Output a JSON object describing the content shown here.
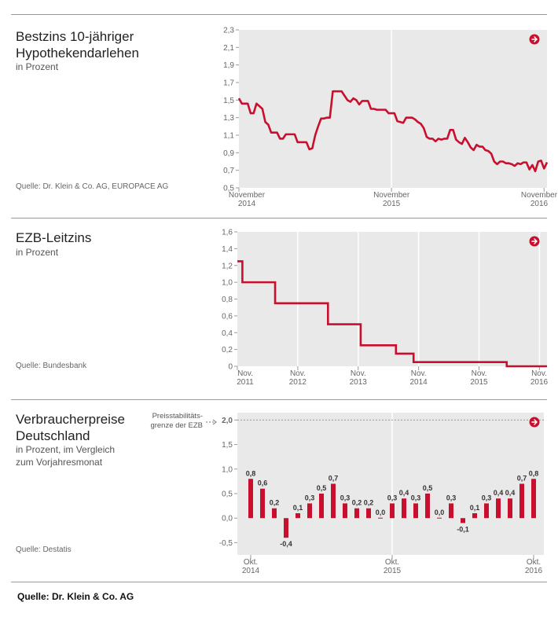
{
  "colors": {
    "series": "#c8102e",
    "plot_bg": "#e9e9e9",
    "grid": "#ffffff"
  },
  "footer": "Quelle: Dr. Klein & Co. AG",
  "panels": [
    {
      "title_line1": "Bestzins 10-jähriger",
      "title_line2": "Hypothekendarlehen",
      "subtitle_line1": "in Prozent",
      "source": "Quelle: Dr. Klein & Co. AG, EUROPACE AG",
      "icon": "arrow-right-circle-icon"
    },
    {
      "title_line1": "EZB-Leitzins",
      "title_line2": "",
      "subtitle_line1": "in Prozent",
      "source": "Quelle: Bundesbank",
      "icon": "arrow-right-circle-icon"
    },
    {
      "title_line1": "Verbraucherpreise",
      "title_line2": "Deutschland",
      "subtitle_line1": "in Prozent, im Vergleich",
      "subtitle_line2": "zum Vorjahresmonat",
      "source": "Quelle: Destatis",
      "note": "Preisstabilitäts-grenze der EZB",
      "icon": "arrow-right-circle-icon"
    }
  ],
  "chart_data": [
    {
      "type": "line",
      "title": "Bestzins 10-jähriger Hypothekendarlehen",
      "ylabel": "in Prozent",
      "ylim": [
        0.5,
        2.3
      ],
      "yticks": [
        "0,5",
        "0,7",
        "0,9",
        "1,1",
        "1,3",
        "1,5",
        "1,7",
        "1,9",
        "2,1",
        "2,3"
      ],
      "xticks": [
        {
          "pos": 0,
          "line1": "November",
          "line2": "2014"
        },
        {
          "pos": 52,
          "line1": "November",
          "line2": "2015"
        },
        {
          "pos": 104,
          "line1": "November",
          "line2": "2016"
        }
      ],
      "xlim": [
        0,
        105
      ],
      "grid": "vertical lines at year ticks",
      "series": [
        {
          "name": "Bestzins",
          "values": [
            1.52,
            1.46,
            1.46,
            1.46,
            1.35,
            1.35,
            1.46,
            1.43,
            1.4,
            1.25,
            1.22,
            1.13,
            1.13,
            1.13,
            1.06,
            1.06,
            1.11,
            1.11,
            1.11,
            1.11,
            1.02,
            1.02,
            1.02,
            1.02,
            0.94,
            0.95,
            1.1,
            1.2,
            1.29,
            1.29,
            1.3,
            1.3,
            1.6,
            1.6,
            1.6,
            1.6,
            1.55,
            1.5,
            1.48,
            1.52,
            1.5,
            1.45,
            1.49,
            1.49,
            1.49,
            1.4,
            1.4,
            1.39,
            1.39,
            1.39,
            1.39,
            1.35,
            1.35,
            1.35,
            1.26,
            1.25,
            1.24,
            1.3,
            1.3,
            1.3,
            1.28,
            1.25,
            1.23,
            1.18,
            1.08,
            1.06,
            1.06,
            1.03,
            1.06,
            1.05,
            1.06,
            1.06,
            1.16,
            1.16,
            1.05,
            1.02,
            1.0,
            1.07,
            1.02,
            0.96,
            0.93,
            0.99,
            0.97,
            0.97,
            0.93,
            0.92,
            0.89,
            0.8,
            0.77,
            0.8,
            0.8,
            0.78,
            0.78,
            0.77,
            0.75,
            0.78,
            0.77,
            0.79,
            0.79,
            0.71,
            0.76,
            0.69,
            0.8,
            0.81,
            0.72,
            0.79
          ]
        }
      ]
    },
    {
      "type": "line",
      "title": "EZB-Leitzins",
      "ylabel": "in Prozent",
      "ylim": [
        0,
        1.6
      ],
      "yticks": [
        "0",
        "0,2",
        "0,4",
        "0,6",
        "0,8",
        "1,0",
        "1,2",
        "1,4",
        "1,6"
      ],
      "xticks": [
        {
          "pos": 0,
          "line1": "Nov.",
          "line2": "2011"
        },
        {
          "pos": 12,
          "line1": "Nov.",
          "line2": "2012"
        },
        {
          "pos": 24,
          "line1": "Nov.",
          "line2": "2013"
        },
        {
          "pos": 36,
          "line1": "Nov.",
          "line2": "2014"
        },
        {
          "pos": 48,
          "line1": "Nov.",
          "line2": "2015"
        },
        {
          "pos": 60,
          "line1": "Nov.",
          "line2": "2016"
        }
      ],
      "xlim": [
        0,
        61.5
      ],
      "grid": "vertical lines at year ticks",
      "series": [
        {
          "name": "Leitzins",
          "steps": [
            [
              0,
              1.25
            ],
            [
              1,
              1.0
            ],
            [
              7.5,
              0.75
            ],
            [
              18,
              0.5
            ],
            [
              24.5,
              0.25
            ],
            [
              31.5,
              0.15
            ],
            [
              35,
              0.05
            ],
            [
              53.5,
              0.0
            ],
            [
              61.5,
              0.0
            ]
          ]
        }
      ]
    },
    {
      "type": "bar",
      "title": "Verbraucherpreise Deutschland",
      "ylabel": "in Prozent, im Vergleich zum Vorjahresmonat",
      "ylim": [
        -0.75,
        2.15
      ],
      "yticks": [
        {
          "v": -0.5,
          "label": "-0,5"
        },
        {
          "v": 0,
          "label": "0,0"
        },
        {
          "v": 0.5,
          "label": "0,5"
        },
        {
          "v": 1.0,
          "label": "1,0"
        },
        {
          "v": 1.5,
          "label": "1,5"
        },
        {
          "v": 2.0,
          "label": "2,0"
        }
      ],
      "reference_line": {
        "value": 2.0,
        "label": "2,0"
      },
      "xticks": [
        {
          "pos": 0,
          "line1": "Okt.",
          "line2": "2014"
        },
        {
          "pos": 12,
          "line1": "Okt.",
          "line2": "2015"
        },
        {
          "pos": 24,
          "line1": "Okt.",
          "line2": "2016"
        }
      ],
      "grid": "vertical line at Okt. 2015",
      "values": [
        0.8,
        0.6,
        0.2,
        -0.4,
        0.1,
        0.3,
        0.5,
        0.7,
        0.3,
        0.2,
        0.2,
        0.0,
        0.3,
        0.4,
        0.3,
        0.5,
        0.0,
        0.3,
        -0.1,
        0.1,
        0.3,
        0.4,
        0.4,
        0.7,
        0.8
      ],
      "labels": [
        "0,8",
        "0,6",
        "0,2",
        "-0,4",
        "0,1",
        "0,3",
        "0,5",
        "0,7",
        "0,3",
        "0,2",
        "0,2",
        "0,0",
        "0,3",
        "0,4",
        "0,3",
        "0,5",
        "0,0",
        "0,3",
        "-0,1",
        "0,1",
        "0,3",
        "0,4",
        "0,4",
        "0,7",
        "0,8"
      ]
    }
  ]
}
